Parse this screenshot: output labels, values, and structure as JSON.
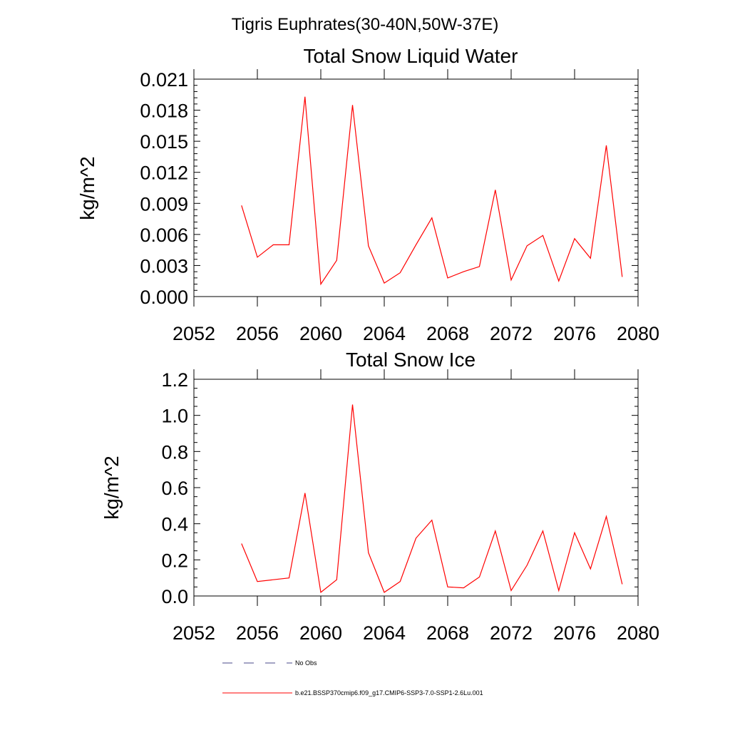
{
  "figure": {
    "title": "Tigris Euphrates(30-40N,50W-37E)",
    "series_color": "#ff0000",
    "obs_color": "#4a4a8a"
  },
  "chart_data": [
    {
      "type": "line",
      "title": "Total Snow Liquid Water",
      "xlabel": "",
      "ylabel": "kg/m^2",
      "xlim": [
        2052,
        2080
      ],
      "ylim": [
        0,
        0.021
      ],
      "x_ticks": [
        "2052",
        "2056",
        "2060",
        "2064",
        "2068",
        "2072",
        "2076",
        "2080"
      ],
      "y_ticks": [
        "0.000",
        "0.003",
        "0.006",
        "0.009",
        "0.012",
        "0.015",
        "0.018",
        "0.021"
      ],
      "grid": false,
      "series": [
        {
          "name": "b.e21.BSSP370cmip6.f09_g17.CMIP6-SSP3-7.0-SSP1-2.6Lu.001",
          "x": [
            2055,
            2056,
            2057,
            2058,
            2059,
            2060,
            2061,
            2062,
            2063,
            2064,
            2065,
            2066,
            2067,
            2068,
            2069,
            2070,
            2071,
            2072,
            2073,
            2074,
            2075,
            2076,
            2077,
            2078,
            2079
          ],
          "y": [
            0.0088,
            0.0038,
            0.005,
            0.005,
            0.0193,
            0.0012,
            0.0035,
            0.0185,
            0.0049,
            0.0013,
            0.0023,
            0.005,
            0.0076,
            0.0018,
            0.0024,
            0.0029,
            0.0103,
            0.0016,
            0.0049,
            0.0059,
            0.0015,
            0.0056,
            0.0037,
            0.0146,
            0.0019
          ]
        }
      ]
    },
    {
      "type": "line",
      "title": "Total Snow Ice",
      "xlabel": "",
      "ylabel": "kg/m^2",
      "xlim": [
        2052,
        2080
      ],
      "ylim": [
        0,
        1.2
      ],
      "x_ticks": [
        "2052",
        "2056",
        "2060",
        "2064",
        "2068",
        "2072",
        "2076",
        "2080"
      ],
      "y_ticks": [
        "0.0",
        "0.2",
        "0.4",
        "0.6",
        "0.8",
        "1.0",
        "1.2"
      ],
      "grid": false,
      "series": [
        {
          "name": "b.e21.BSSP370cmip6.f09_g17.CMIP6-SSP3-7.0-SSP1-2.6Lu.001",
          "x": [
            2055,
            2056,
            2057,
            2058,
            2059,
            2060,
            2061,
            2062,
            2063,
            2064,
            2065,
            2066,
            2067,
            2068,
            2069,
            2070,
            2071,
            2072,
            2073,
            2074,
            2075,
            2076,
            2077,
            2078,
            2079
          ],
          "y": [
            0.29,
            0.08,
            0.09,
            0.1,
            0.57,
            0.02,
            0.09,
            1.06,
            0.24,
            0.02,
            0.08,
            0.32,
            0.42,
            0.05,
            0.045,
            0.105,
            0.36,
            0.03,
            0.17,
            0.36,
            0.03,
            0.35,
            0.15,
            0.44,
            0.065
          ]
        }
      ]
    }
  ],
  "legend": {
    "obs_label": "No Obs",
    "model_label": "b.e21.BSSP370cmip6.f09_g17.CMIP6-SSP3-7.0-SSP1-2.6Lu.001"
  }
}
